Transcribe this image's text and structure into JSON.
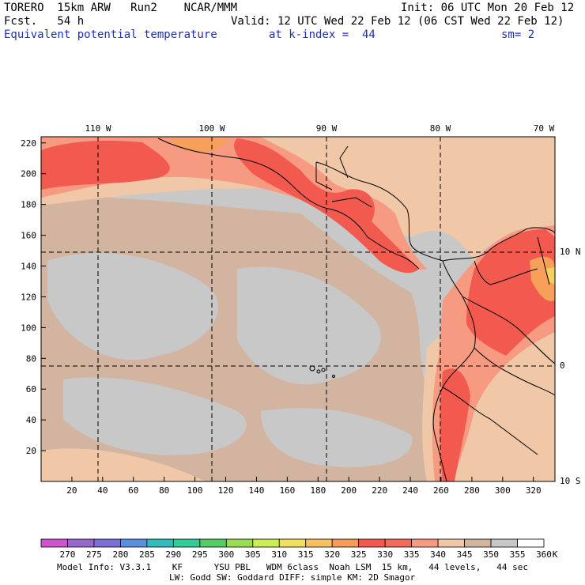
{
  "header": {
    "model": "TORERO  15km ARW   Run2    NCAR/MMM",
    "init": "Init: 06 UTC Mon 20 Feb 12",
    "fcst": "Fcst.   54 h",
    "valid": "Valid: 12 UTC Wed 22 Feb 12 (06 CST Wed 22 Feb 12)",
    "field": "Equivalent potential temperature",
    "level": "at k-index =  44",
    "smooth": "sm= 2"
  },
  "map": {
    "lon_labels": [
      "110 W",
      "100 W",
      "90 W",
      "80 W",
      "70 W"
    ],
    "lat_labels": [
      "10 N",
      "0",
      "10 S"
    ],
    "x_ticks": [
      "20",
      "40",
      "60",
      "80",
      "100",
      "120",
      "140",
      "160",
      "180",
      "200",
      "220",
      "240",
      "260",
      "280",
      "300",
      "320"
    ],
    "y_ticks": [
      "20",
      "40",
      "60",
      "80",
      "100",
      "120",
      "140",
      "160",
      "180",
      "200",
      "220"
    ],
    "colors": {
      "base_gray": "#c8c8c8",
      "tan": "#d2b4a0",
      "peach": "#f0c8a8",
      "salmon": "#f79a82",
      "red": "#f25a50",
      "orange": "#f7a05a",
      "yellow": "#f4d060"
    }
  },
  "colorbar": {
    "labels": [
      "270",
      "275",
      "280",
      "285",
      "290",
      "295",
      "300",
      "305",
      "310",
      "315",
      "320",
      "325",
      "330",
      "335",
      "340",
      "345",
      "350",
      "355",
      "360"
    ],
    "unit": "K",
    "colors": [
      "#cc55cc",
      "#9966cc",
      "#7b6fd6",
      "#5a8fe0",
      "#33bbbb",
      "#33cc99",
      "#55cc66",
      "#99dd55",
      "#ccee55",
      "#f0e060",
      "#f7c060",
      "#f79a5a",
      "#f25a50",
      "#f26a5a",
      "#f79a82",
      "#f0c8a8",
      "#d2b4a0",
      "#c8c8c8",
      "#ffffff"
    ]
  },
  "footer": {
    "line1": "Model Info: V3.3.1    KF      YSU PBL   WDM 6class  Noah LSM  15 km,   44 levels,   44 sec",
    "line2": "LW: Godd SW: Goddard DIFF: simple KM: 2D Smagor"
  }
}
